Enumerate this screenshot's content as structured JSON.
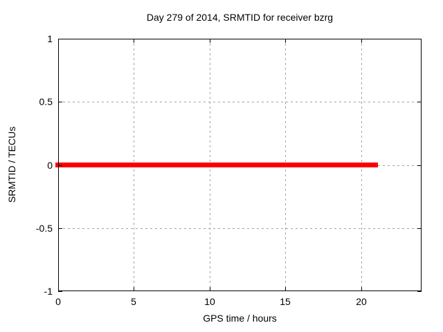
{
  "chart_data": {
    "type": "line",
    "title": "Day 279 of 2014, SRMTID for receiver bzrg",
    "xlabel": "GPS time / hours",
    "ylabel": "SRMTID / TECUs",
    "xlim": [
      0,
      24
    ],
    "ylim": [
      -1,
      1
    ],
    "xticks": [
      0,
      5,
      10,
      15,
      20
    ],
    "yticks": [
      -1,
      -0.5,
      0,
      0.5,
      1
    ],
    "grid": true,
    "legend": "none",
    "series": [
      {
        "name": "SRMTID",
        "color": "#ff0000",
        "linewidth": 7,
        "x": [
          0,
          21.1
        ],
        "y": [
          0,
          0
        ]
      }
    ],
    "colors": {
      "background": "#ffffff",
      "border": "#000000",
      "grid": "#a0a0a0",
      "text": "#000000"
    }
  }
}
